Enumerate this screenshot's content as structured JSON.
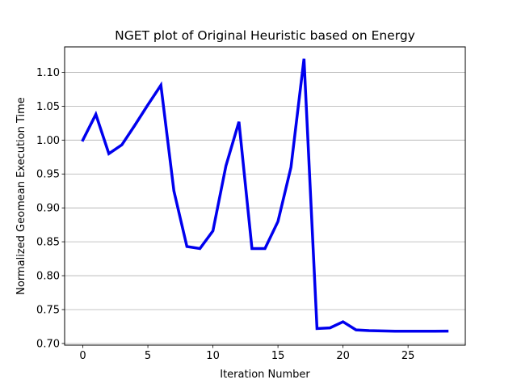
{
  "chart_data": {
    "type": "line",
    "title": "NGET plot of Original Heuristic based on Energy",
    "xlabel": "Iteration Number",
    "ylabel": "Normalized Geomean Execution Time",
    "xlim": [
      -1.4,
      29.4
    ],
    "ylim": [
      0.6975,
      1.1375
    ],
    "xticks": [
      0,
      5,
      10,
      15,
      20,
      25
    ],
    "xtick_labels": [
      "0",
      "5",
      "10",
      "15",
      "20",
      "25"
    ],
    "yticks": [
      0.7,
      0.75,
      0.8,
      0.85,
      0.9,
      0.95,
      1.0,
      1.05,
      1.1
    ],
    "ytick_labels": [
      "0.70",
      "0.75",
      "0.80",
      "0.85",
      "0.90",
      "0.95",
      "1.00",
      "1.05",
      "1.10"
    ],
    "grid": "y-axis horizontal lines",
    "series": [
      {
        "color": "#0000ee",
        "x": [
          0,
          1,
          2,
          3,
          4,
          5,
          6,
          7,
          8,
          9,
          10,
          11,
          12,
          13,
          14,
          15,
          16,
          17,
          18,
          19,
          20,
          21,
          22,
          23,
          24,
          25,
          26,
          27,
          28
        ],
        "values": [
          1.0,
          1.038,
          0.98,
          0.993,
          1.022,
          1.052,
          1.081,
          0.925,
          0.843,
          0.84,
          0.866,
          0.962,
          1.027,
          0.84,
          0.84,
          0.88,
          0.96,
          1.12,
          0.722,
          0.723,
          0.732,
          0.72,
          0.719,
          0.7185,
          0.718,
          0.718,
          0.718,
          0.718,
          0.7182
        ]
      }
    ]
  }
}
